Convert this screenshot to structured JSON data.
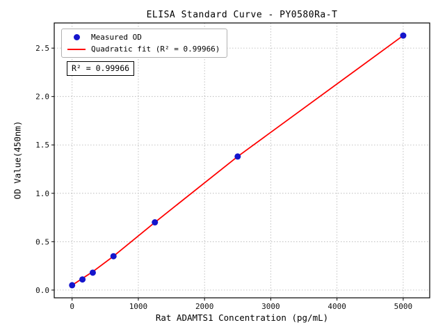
{
  "chart_data": {
    "type": "scatter",
    "title": "ELISA Standard Curve - PY0580Ra-T",
    "xlabel": "Rat ADAMTS1 Concentration (pg/mL)",
    "ylabel": "OD Value(450nm)",
    "xlim": [
      -270,
      5400
    ],
    "ylim": [
      -0.08,
      2.76
    ],
    "xticks": [
      0,
      1000,
      2000,
      3000,
      4000,
      5000
    ],
    "xticklabels": [
      "0",
      "1000",
      "2000",
      "3000",
      "4000",
      "5000"
    ],
    "yticks": [
      0,
      0.5,
      1.0,
      1.5,
      2.0,
      2.5
    ],
    "yticklabels": [
      "0.0",
      "0.5",
      "1.0",
      "1.5",
      "2.0",
      "2.5"
    ],
    "grid": true,
    "grid_style": "dotted",
    "legend_position": "upper left",
    "annotation": "R² = 0.99966",
    "series": [
      {
        "name": "Measured OD",
        "kind": "scatter",
        "color": "#1515cc",
        "x": [
          0,
          156,
          312,
          625,
          1250,
          2500,
          5000
        ],
        "y": [
          0.05,
          0.11,
          0.18,
          0.35,
          0.7,
          1.38,
          2.63
        ]
      },
      {
        "name": "Quadratic fit (R² = 0.99966)",
        "kind": "line",
        "color": "#ff0000",
        "x": [
          0,
          156,
          312,
          625,
          1250,
          2500,
          5000
        ],
        "y": [
          0.05,
          0.12,
          0.19,
          0.35,
          0.7,
          1.38,
          2.63
        ]
      }
    ]
  }
}
